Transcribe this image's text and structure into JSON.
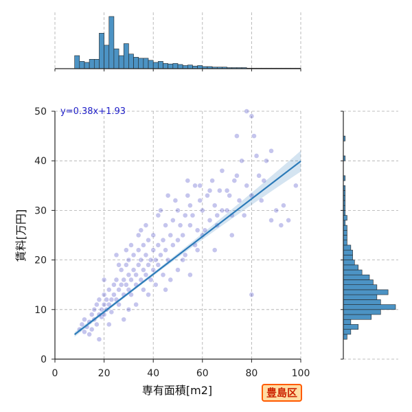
{
  "chart_data": {
    "type": "scatter",
    "xlabel": "専有面積[m2]",
    "ylabel": "賃料[万円]",
    "xlim": [
      0,
      100
    ],
    "ylim": [
      0,
      50
    ],
    "xticks": [
      "0",
      "20",
      "40",
      "60",
      "80",
      "100"
    ],
    "yticks": [
      "0",
      "10",
      "20",
      "30",
      "40",
      "50"
    ],
    "grid": true,
    "annotation": "y=0.38x+1.93",
    "regression": {
      "slope": 0.38,
      "intercept": 1.93,
      "x_range": [
        8,
        100
      ]
    },
    "point_color": "#3030c0",
    "line_color": "#2a7ab8",
    "hist_color": "#4c93c4",
    "points": [
      [
        10,
        6
      ],
      [
        11,
        7
      ],
      [
        12,
        5.5
      ],
      [
        12,
        8
      ],
      [
        13,
        6.5
      ],
      [
        14,
        7.5
      ],
      [
        15,
        6
      ],
      [
        15,
        9
      ],
      [
        16,
        8
      ],
      [
        16,
        10
      ],
      [
        17,
        7
      ],
      [
        17,
        11
      ],
      [
        18,
        9
      ],
      [
        18,
        12
      ],
      [
        19,
        8.5
      ],
      [
        19,
        10
      ],
      [
        20,
        11
      ],
      [
        20,
        9
      ],
      [
        20,
        13
      ],
      [
        21,
        10
      ],
      [
        21,
        12
      ],
      [
        22,
        11
      ],
      [
        22,
        14
      ],
      [
        23,
        12
      ],
      [
        23,
        9.5
      ],
      [
        24,
        13
      ],
      [
        24,
        15
      ],
      [
        25,
        12
      ],
      [
        25,
        21
      ],
      [
        25,
        16
      ],
      [
        26,
        14
      ],
      [
        26,
        11
      ],
      [
        27,
        15
      ],
      [
        27,
        18
      ],
      [
        28,
        13
      ],
      [
        28,
        16
      ],
      [
        29,
        15
      ],
      [
        29,
        19
      ],
      [
        30,
        14
      ],
      [
        30,
        17
      ],
      [
        30,
        20
      ],
      [
        31,
        16
      ],
      [
        31,
        13
      ],
      [
        32,
        18
      ],
      [
        32,
        21
      ],
      [
        33,
        15
      ],
      [
        33,
        17
      ],
      [
        34,
        19
      ],
      [
        34,
        22
      ],
      [
        35,
        16
      ],
      [
        35,
        20
      ],
      [
        36,
        18
      ],
      [
        36,
        23
      ],
      [
        37,
        17
      ],
      [
        37,
        21
      ],
      [
        38,
        19
      ],
      [
        38,
        24
      ],
      [
        39,
        20
      ],
      [
        39,
        16
      ],
      [
        40,
        22
      ],
      [
        40,
        18
      ],
      [
        40,
        25
      ],
      [
        41,
        20
      ],
      [
        42,
        23
      ],
      [
        42,
        19
      ],
      [
        43,
        21
      ],
      [
        44,
        24
      ],
      [
        45,
        22
      ],
      [
        45,
        27
      ],
      [
        46,
        20
      ],
      [
        47,
        25
      ],
      [
        48,
        23
      ],
      [
        48,
        28
      ],
      [
        50,
        24
      ],
      [
        50,
        30
      ],
      [
        51,
        27
      ],
      [
        52,
        25
      ],
      [
        53,
        29
      ],
      [
        54,
        33
      ],
      [
        55,
        27
      ],
      [
        55,
        31
      ],
      [
        56,
        29
      ],
      [
        57,
        35
      ],
      [
        58,
        26
      ],
      [
        59,
        32
      ],
      [
        60,
        30
      ],
      [
        60,
        25
      ],
      [
        62,
        33
      ],
      [
        63,
        28
      ],
      [
        64,
        36
      ],
      [
        65,
        31
      ],
      [
        66,
        27
      ],
      [
        67,
        34
      ],
      [
        68,
        38
      ],
      [
        70,
        30
      ],
      [
        71,
        33
      ],
      [
        72,
        29
      ],
      [
        73,
        36
      ],
      [
        74,
        45
      ],
      [
        75,
        32
      ],
      [
        76,
        40
      ],
      [
        78,
        35
      ],
      [
        80,
        33
      ],
      [
        80,
        49
      ],
      [
        82,
        41
      ],
      [
        83,
        37
      ],
      [
        85,
        36
      ],
      [
        86,
        40
      ],
      [
        88,
        28
      ],
      [
        90,
        30
      ],
      [
        92,
        27
      ],
      [
        95,
        28
      ],
      [
        98,
        35
      ],
      [
        35,
        26
      ],
      [
        42,
        29
      ],
      [
        47,
        16
      ],
      [
        52,
        20
      ],
      [
        58,
        22
      ],
      [
        65,
        22
      ],
      [
        72,
        25
      ],
      [
        80,
        13
      ],
      [
        30,
        10
      ],
      [
        38,
        13
      ],
      [
        45,
        14
      ],
      [
        55,
        17
      ],
      [
        20,
        16
      ],
      [
        22,
        7
      ],
      [
        14,
        5
      ],
      [
        18,
        4
      ],
      [
        28,
        8
      ],
      [
        33,
        11
      ],
      [
        36,
        14
      ],
      [
        41,
        15
      ],
      [
        44,
        17
      ],
      [
        50,
        18
      ],
      [
        53,
        21
      ],
      [
        57,
        23
      ],
      [
        61,
        26
      ],
      [
        66,
        29
      ],
      [
        70,
        34
      ],
      [
        74,
        37
      ],
      [
        77,
        29
      ],
      [
        84,
        32
      ],
      [
        88,
        42
      ],
      [
        93,
        31
      ],
      [
        26,
        19
      ],
      [
        29,
        22
      ],
      [
        31,
        23
      ],
      [
        34,
        25
      ],
      [
        37,
        27
      ],
      [
        43,
        30
      ],
      [
        46,
        33
      ],
      [
        49,
        32
      ],
      [
        54,
        36
      ],
      [
        59,
        35
      ],
      [
        63,
        34
      ],
      [
        68,
        30
      ],
      [
        78,
        50
      ],
      [
        81,
        45
      ]
    ],
    "top_hist": {
      "bin_width": 2,
      "bin_start": 8,
      "counts": [
        25,
        14,
        12,
        18,
        18,
        68,
        45,
        100,
        38,
        25,
        48,
        28,
        22,
        20,
        20,
        16,
        12,
        14,
        10,
        9,
        10,
        8,
        6,
        7,
        5,
        6,
        4,
        4,
        3,
        3,
        3,
        2,
        2,
        2,
        2,
        1,
        1,
        1,
        1,
        1,
        1,
        1,
        1,
        1,
        1,
        1
      ]
    },
    "right_hist": {
      "bin_width": 1,
      "bin_start": 4,
      "counts": [
        2,
        4,
        8,
        4,
        15,
        20,
        28,
        20,
        18,
        24,
        18,
        16,
        14,
        10,
        8,
        6,
        5,
        5,
        4,
        2,
        2,
        2,
        2,
        1,
        2,
        1,
        1,
        1,
        1,
        1,
        1,
        0,
        1,
        0,
        0,
        0,
        1,
        0,
        0,
        0,
        1,
        0,
        0,
        0,
        0,
        0,
        0
      ]
    }
  },
  "badge": "豊島区"
}
